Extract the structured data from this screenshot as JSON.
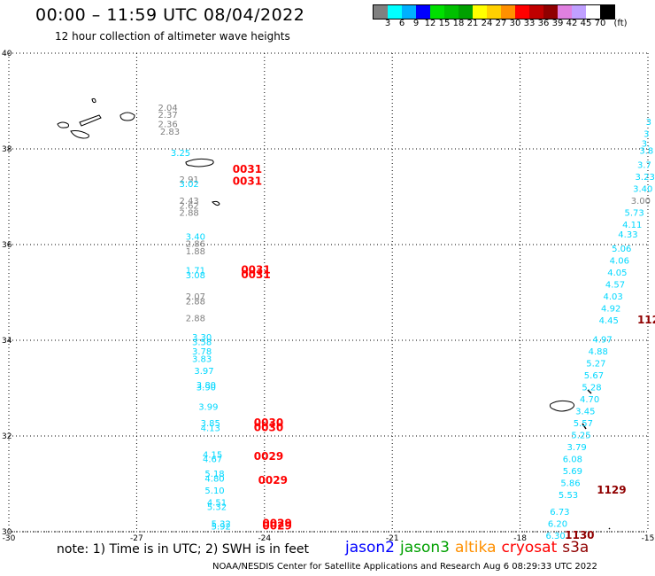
{
  "header": {
    "title": "00:00 – 11:59 UTC 08/04/2022",
    "subtitle": "12 hour collection of altimeter wave heights"
  },
  "colorbar": {
    "colors": [
      "#808080",
      "#00ffff",
      "#00b0ff",
      "#0000ff",
      "#00e000",
      "#00c000",
      "#00a000",
      "#ffff00",
      "#ffd000",
      "#ff9000",
      "#ff0000",
      "#c00000",
      "#900000",
      "#e080e0",
      "#c0a0ff",
      "#ffffff",
      "#000000"
    ],
    "labels": [
      "3",
      "6",
      "9",
      "12",
      "15",
      "18",
      "21",
      "24",
      "27",
      "30",
      "33",
      "36",
      "39",
      "42",
      "45",
      "70"
    ],
    "unit": "(ft)"
  },
  "axes": {
    "x_ticks": [
      "-30",
      "-27",
      "-24",
      "-21",
      "-18",
      "-15"
    ],
    "y_ticks": [
      "30",
      "32",
      "34",
      "36",
      "38",
      "40"
    ],
    "lon_range": [
      -30,
      -15
    ],
    "lat_range": [
      30,
      40
    ]
  },
  "tracks": {
    "left_gray": [
      {
        "lon": -26.5,
        "lat": 38.8,
        "v": "2.04"
      },
      {
        "lon": -26.5,
        "lat": 38.65,
        "v": "2.37"
      },
      {
        "lon": -26.5,
        "lat": 38.45,
        "v": "2.36"
      },
      {
        "lon": -26.45,
        "lat": 38.3,
        "v": "2.83"
      },
      {
        "lon": -26.0,
        "lat": 37.3,
        "v": "2.91"
      },
      {
        "lon": -26.0,
        "lat": 36.85,
        "v": "2.43"
      },
      {
        "lon": -26.0,
        "lat": 36.75,
        "v": "2.62"
      },
      {
        "lon": -26.0,
        "lat": 36.6,
        "v": "2.88"
      },
      {
        "lon": -25.85,
        "lat": 35.95,
        "v": "2.86"
      },
      {
        "lon": -25.85,
        "lat": 35.8,
        "v": "1.88"
      },
      {
        "lon": -25.85,
        "lat": 34.85,
        "v": "2.07"
      },
      {
        "lon": -25.85,
        "lat": 34.75,
        "v": "2.88"
      },
      {
        "lon": -25.85,
        "lat": 34.4,
        "v": "2.88"
      }
    ],
    "left_cyan": [
      {
        "lon": -26.2,
        "lat": 37.85,
        "v": "3.25"
      },
      {
        "lon": -26.0,
        "lat": 37.2,
        "v": "3.02"
      },
      {
        "lon": -25.85,
        "lat": 36.1,
        "v": "3.40"
      },
      {
        "lon": -25.85,
        "lat": 35.4,
        "v": "1.71"
      },
      {
        "lon": -25.85,
        "lat": 35.3,
        "v": "3.08"
      },
      {
        "lon": -25.7,
        "lat": 34.0,
        "v": "3.30"
      },
      {
        "lon": -25.7,
        "lat": 33.9,
        "v": "3.58"
      },
      {
        "lon": -25.7,
        "lat": 33.7,
        "v": "3.78"
      },
      {
        "lon": -25.7,
        "lat": 33.55,
        "v": "3.83"
      },
      {
        "lon": -25.65,
        "lat": 33.3,
        "v": "3.97"
      },
      {
        "lon": -25.6,
        "lat": 33.0,
        "v": "3.80"
      },
      {
        "lon": -25.6,
        "lat": 32.95,
        "v": "3.90"
      },
      {
        "lon": -25.55,
        "lat": 32.55,
        "v": "3.99"
      },
      {
        "lon": -25.5,
        "lat": 32.2,
        "v": "3.85"
      },
      {
        "lon": -25.5,
        "lat": 32.1,
        "v": "4.13"
      },
      {
        "lon": -25.45,
        "lat": 31.55,
        "v": "4.15"
      },
      {
        "lon": -25.45,
        "lat": 31.45,
        "v": "4.67"
      },
      {
        "lon": -25.4,
        "lat": 31.15,
        "v": "5.18"
      },
      {
        "lon": -25.4,
        "lat": 31.05,
        "v": "4.80"
      },
      {
        "lon": -25.4,
        "lat": 30.8,
        "v": "5.10"
      },
      {
        "lon": -25.35,
        "lat": 30.55,
        "v": "4.51"
      },
      {
        "lon": -25.35,
        "lat": 30.45,
        "v": "5.32"
      },
      {
        "lon": -25.25,
        "lat": 30.1,
        "v": "5.32"
      },
      {
        "lon": -25.25,
        "lat": 30.05,
        "v": "5.92"
      }
    ],
    "right_cyan": [
      {
        "lon": -15.05,
        "lat": 38.5,
        "v": "3"
      },
      {
        "lon": -15.1,
        "lat": 38.25,
        "v": "3"
      },
      {
        "lon": -15.15,
        "lat": 38.05,
        "v": "3."
      },
      {
        "lon": -15.2,
        "lat": 37.9,
        "v": "3.8"
      },
      {
        "lon": -15.25,
        "lat": 37.6,
        "v": "3.7"
      },
      {
        "lon": -15.3,
        "lat": 37.35,
        "v": "3.23"
      },
      {
        "lon": -15.35,
        "lat": 37.1,
        "v": "3.40"
      },
      {
        "lon": -15.55,
        "lat": 36.6,
        "v": "5.73"
      },
      {
        "lon": -15.6,
        "lat": 36.35,
        "v": "4.11"
      },
      {
        "lon": -15.7,
        "lat": 36.15,
        "v": "4.33"
      },
      {
        "lon": -15.85,
        "lat": 35.85,
        "v": "5.06"
      },
      {
        "lon": -15.9,
        "lat": 35.6,
        "v": "4.06"
      },
      {
        "lon": -15.95,
        "lat": 35.35,
        "v": "4.05"
      },
      {
        "lon": -16.0,
        "lat": 35.1,
        "v": "4.57"
      },
      {
        "lon": -16.05,
        "lat": 34.85,
        "v": "4.03"
      },
      {
        "lon": -16.1,
        "lat": 34.6,
        "v": "4.92"
      },
      {
        "lon": -16.15,
        "lat": 34.35,
        "v": "4.45"
      },
      {
        "lon": -16.3,
        "lat": 33.95,
        "v": "4.97"
      },
      {
        "lon": -16.4,
        "lat": 33.7,
        "v": "4.88"
      },
      {
        "lon": -16.45,
        "lat": 33.45,
        "v": "5.27"
      },
      {
        "lon": -16.5,
        "lat": 33.2,
        "v": "5.67"
      },
      {
        "lon": -16.55,
        "lat": 32.95,
        "v": "5.28"
      },
      {
        "lon": -16.6,
        "lat": 32.7,
        "v": "4.70"
      },
      {
        "lon": -16.7,
        "lat": 32.45,
        "v": "3.45"
      },
      {
        "lon": -16.75,
        "lat": 32.2,
        "v": "5.57"
      },
      {
        "lon": -16.8,
        "lat": 31.95,
        "v": "5.25"
      },
      {
        "lon": -16.9,
        "lat": 31.7,
        "v": "3.79"
      },
      {
        "lon": -17.0,
        "lat": 31.45,
        "v": "6.08"
      },
      {
        "lon": -17.0,
        "lat": 31.2,
        "v": "5.69"
      },
      {
        "lon": -17.05,
        "lat": 30.95,
        "v": "5.86"
      },
      {
        "lon": -17.1,
        "lat": 30.7,
        "v": "5.53"
      },
      {
        "lon": -17.3,
        "lat": 30.35,
        "v": "6.73"
      },
      {
        "lon": -17.35,
        "lat": 30.1,
        "v": "6.20"
      },
      {
        "lon": -17.4,
        "lat": 29.85,
        "v": "6.30"
      }
    ],
    "right_gray": [
      {
        "lon": -15.4,
        "lat": 36.85,
        "v": "3.00"
      }
    ],
    "times": [
      {
        "lon": -24.75,
        "lat": 37.5,
        "v": "0031",
        "c": "#ff0000"
      },
      {
        "lon": -24.75,
        "lat": 37.25,
        "v": "0031",
        "c": "#ff0000"
      },
      {
        "lon": -24.55,
        "lat": 35.4,
        "v": "0031",
        "c": "#ff0000"
      },
      {
        "lon": -24.55,
        "lat": 35.3,
        "v": "0031",
        "c": "#ff0000"
      },
      {
        "lon": -24.25,
        "lat": 32.2,
        "v": "0030",
        "c": "#ff0000"
      },
      {
        "lon": -24.25,
        "lat": 32.1,
        "v": "0030",
        "c": "#ff0000"
      },
      {
        "lon": -24.25,
        "lat": 31.5,
        "v": "0029",
        "c": "#ff0000"
      },
      {
        "lon": -24.15,
        "lat": 31.0,
        "v": "0029",
        "c": "#ff0000"
      },
      {
        "lon": -24.05,
        "lat": 30.1,
        "v": "0029",
        "c": "#ff0000"
      },
      {
        "lon": -24.05,
        "lat": 30.05,
        "v": "0029",
        "c": "#ff0000"
      },
      {
        "lon": -15.25,
        "lat": 34.35,
        "v": "1128",
        "c": "#900000"
      },
      {
        "lon": -16.2,
        "lat": 30.8,
        "v": "1129",
        "c": "#900000"
      },
      {
        "lon": -16.95,
        "lat": 29.85,
        "v": "1130",
        "c": "#900000"
      }
    ]
  },
  "footer": {
    "note": "note: 1) Time is in UTC; 2) SWH is in feet",
    "credit": "NOAA/NESDIS Center for Satellite Applications and Research    Aug  6 08:29:33 UTC 2022",
    "legend": [
      {
        "label": "jason2",
        "color": "#0000ff"
      },
      {
        "label": "jason3",
        "color": "#00a000"
      },
      {
        "label": "altika",
        "color": "#ff9000"
      },
      {
        "label": "cryosat",
        "color": "#ff0000"
      },
      {
        "label": "s3a",
        "color": "#900000"
      }
    ]
  }
}
